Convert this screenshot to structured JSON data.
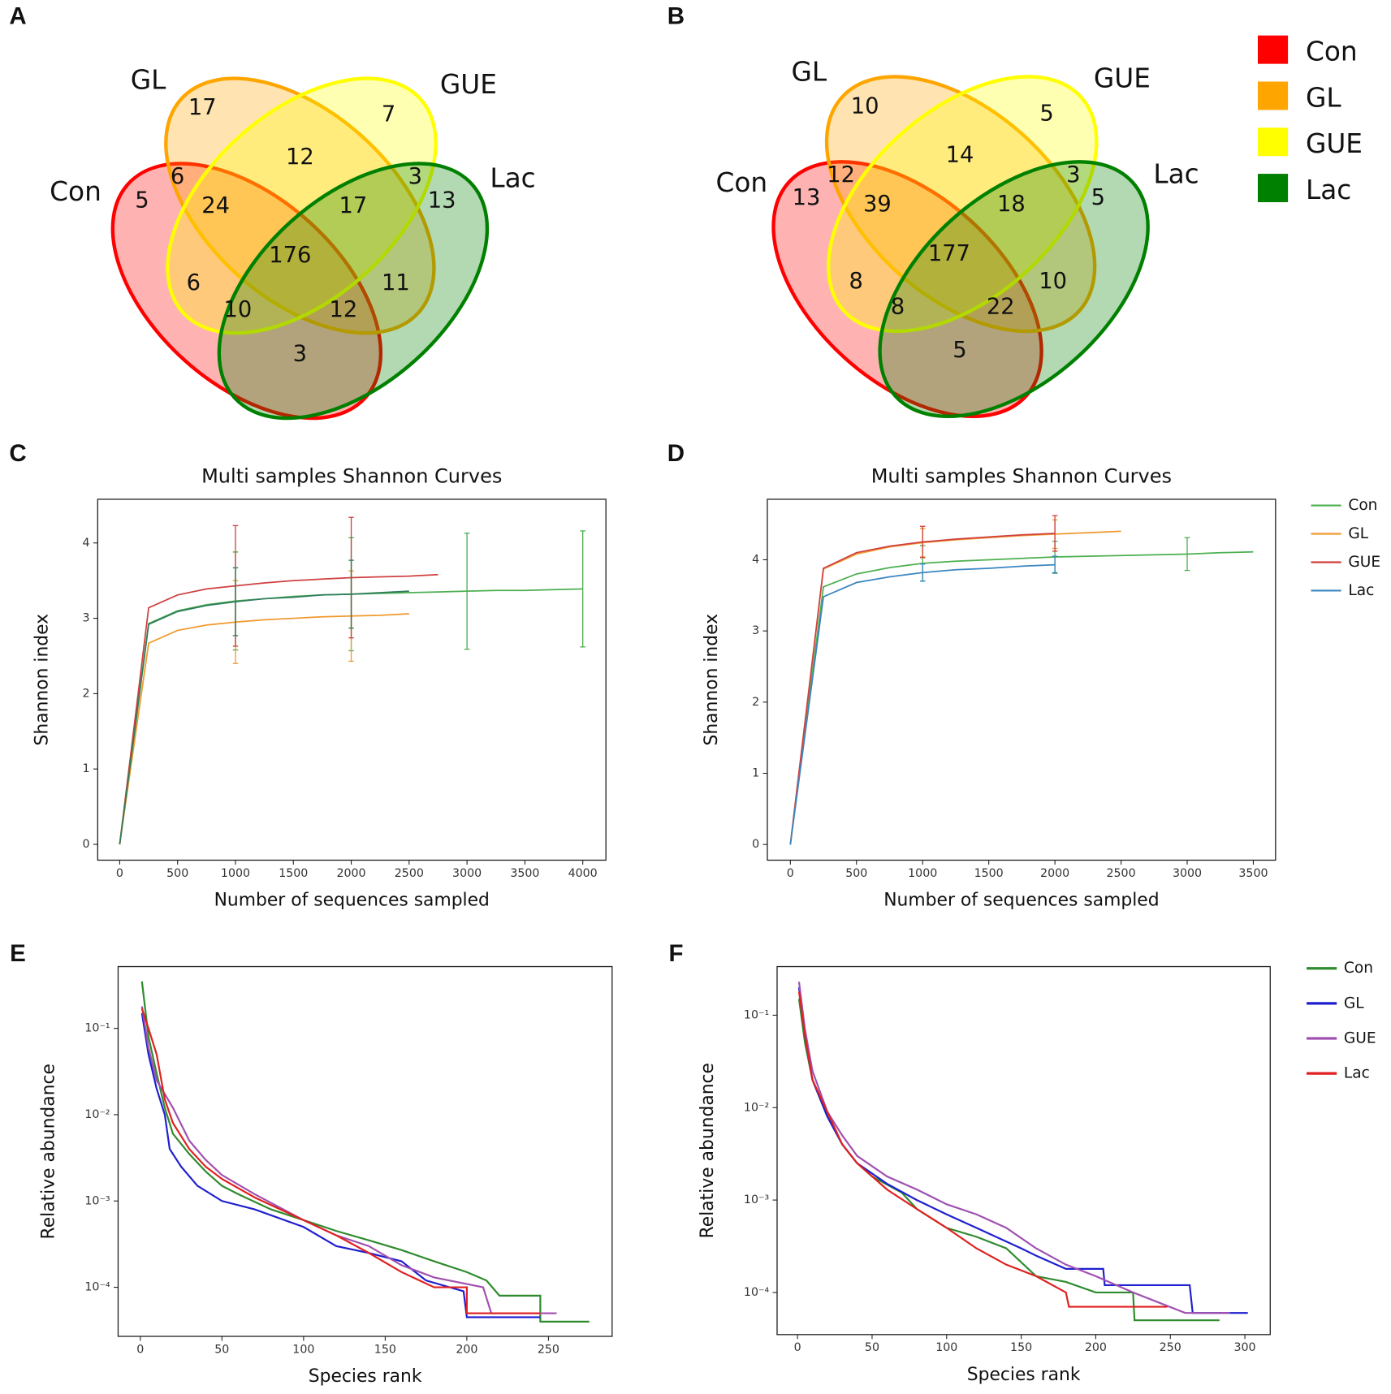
{
  "chart_data": [
    {
      "panel": "A",
      "type": "venn",
      "sets": [
        {
          "name": "Con",
          "color": "#ff0000"
        },
        {
          "name": "GL",
          "color": "#ffa500"
        },
        {
          "name": "GUE",
          "color": "#ffff00"
        },
        {
          "name": "Lac",
          "color": "#008000"
        }
      ],
      "values": [
        17,
        7,
        12,
        6,
        3,
        5,
        24,
        17,
        13,
        176,
        6,
        11,
        10,
        12,
        3
      ]
    },
    {
      "panel": "B",
      "type": "venn",
      "legend": "right",
      "sets": [
        {
          "name": "Con",
          "color": "#ff0000"
        },
        {
          "name": "GL",
          "color": "#ffa500"
        },
        {
          "name": "GUE",
          "color": "#ffff00"
        },
        {
          "name": "Lac",
          "color": "#008000"
        }
      ],
      "values": [
        10,
        5,
        14,
        12,
        3,
        13,
        39,
        18,
        5,
        177,
        8,
        10,
        8,
        22,
        5
      ]
    },
    {
      "panel": "C",
      "type": "line",
      "title": "Multi samples Shannon Curves",
      "xlabel": "Number of sequences sampled",
      "ylabel": "Shannon index",
      "xlim": [
        -190,
        4200
      ],
      "ylim": [
        -0.21,
        4.58
      ],
      "xticks": [
        0,
        500,
        1000,
        1500,
        2000,
        2500,
        3000,
        3500,
        4000
      ],
      "yticks": [
        0,
        1,
        2,
        3,
        4
      ],
      "series": [
        {
          "color": "#4caf50",
          "x": [
            0,
            250,
            500,
            750,
            1000,
            1250,
            1500,
            1750,
            2000,
            2250,
            2500,
            2750,
            3000,
            3250,
            3500,
            3750,
            4000
          ],
          "values": [
            0,
            2.93,
            3.1,
            3.18,
            3.23,
            3.26,
            3.29,
            3.31,
            3.32,
            3.33,
            3.34,
            3.35,
            3.36,
            3.37,
            3.37,
            3.38,
            3.39
          ],
          "errors": [
            null,
            null,
            null,
            null,
            0.65,
            null,
            null,
            null,
            0.75,
            null,
            null,
            null,
            0.77,
            null,
            null,
            null,
            0.77
          ]
        },
        {
          "color": "#f0992e",
          "x": [
            0,
            250,
            500,
            750,
            1000,
            1250,
            1500,
            1750,
            2000,
            2250,
            2500
          ],
          "values": [
            0,
            2.67,
            2.84,
            2.91,
            2.95,
            2.98,
            3.0,
            3.02,
            3.03,
            3.04,
            3.06
          ],
          "errors": [
            null,
            null,
            null,
            null,
            0.55,
            null,
            null,
            null,
            0.6,
            null,
            null
          ]
        },
        {
          "color": "#d04040",
          "x": [
            0,
            250,
            500,
            750,
            1000,
            1250,
            1500,
            1750,
            2000,
            2250,
            2500,
            2750
          ],
          "values": [
            0,
            3.14,
            3.31,
            3.39,
            3.43,
            3.47,
            3.5,
            3.52,
            3.54,
            3.55,
            3.56,
            3.58
          ],
          "errors": [
            null,
            null,
            null,
            null,
            0.8,
            null,
            null,
            null,
            0.8,
            null,
            null,
            null
          ]
        },
        {
          "color": "#2e7d5b",
          "x": [
            0,
            250,
            500,
            750,
            1000,
            1250,
            1500,
            1750,
            2000,
            2250,
            2500
          ],
          "values": [
            0,
            2.92,
            3.09,
            3.17,
            3.22,
            3.26,
            3.28,
            3.31,
            3.32,
            3.34,
            3.36
          ],
          "errors": [
            null,
            null,
            null,
            null,
            0.45,
            null,
            null,
            null,
            0.45,
            null,
            null
          ]
        }
      ]
    },
    {
      "panel": "D",
      "type": "line",
      "title": "Multi samples Shannon Curves",
      "xlabel": "Number of sequences sampled",
      "ylabel": "Shannon index",
      "legend": "right",
      "xlim": [
        -174,
        3668
      ],
      "ylim": [
        -0.22,
        4.85
      ],
      "xticks": [
        0,
        500,
        1000,
        1500,
        2000,
        2500,
        3000,
        3500
      ],
      "yticks": [
        0,
        1,
        2,
        3,
        4
      ],
      "series": [
        {
          "name": "Con",
          "color": "#4caf50",
          "x": [
            0,
            250,
            500,
            750,
            1000,
            1250,
            1500,
            1750,
            2000,
            2250,
            2500,
            2750,
            3000,
            3250,
            3500
          ],
          "values": [
            0,
            3.62,
            3.8,
            3.89,
            3.95,
            3.98,
            4.0,
            4.02,
            4.04,
            4.05,
            4.06,
            4.07,
            4.08,
            4.1,
            4.11
          ],
          "errors": [
            null,
            null,
            null,
            null,
            0.25,
            null,
            null,
            null,
            0.22,
            null,
            null,
            null,
            0.23,
            null,
            null
          ]
        },
        {
          "name": "GL",
          "color": "#f0992e",
          "x": [
            0,
            250,
            500,
            750,
            1000,
            1250,
            1500,
            1750,
            2000,
            2250,
            2500
          ],
          "values": [
            0,
            3.87,
            4.08,
            4.18,
            4.24,
            4.28,
            4.31,
            4.34,
            4.36,
            4.38,
            4.4
          ],
          "errors": [
            null,
            null,
            null,
            null,
            0.2,
            null,
            null,
            null,
            0.2,
            null,
            null
          ]
        },
        {
          "name": "GUE",
          "color": "#d04040",
          "x": [
            0,
            250,
            500,
            750,
            1000,
            1250,
            1500,
            1750,
            2000
          ],
          "values": [
            0,
            3.88,
            4.1,
            4.19,
            4.25,
            4.29,
            4.32,
            4.35,
            4.37
          ],
          "errors": [
            null,
            null,
            null,
            null,
            0.22,
            null,
            null,
            null,
            0.25
          ]
        },
        {
          "name": "Lac",
          "color": "#3a86c0",
          "x": [
            0,
            250,
            500,
            750,
            1000,
            1250,
            1500,
            1750,
            2000
          ],
          "values": [
            0,
            3.48,
            3.68,
            3.76,
            3.82,
            3.86,
            3.88,
            3.91,
            3.93
          ],
          "errors": [
            null,
            null,
            null,
            null,
            0.12,
            null,
            null,
            null,
            0.12
          ]
        }
      ]
    },
    {
      "panel": "E",
      "type": "line",
      "log_y": true,
      "xlabel": "Species rank",
      "ylabel": "Relative abundance",
      "xlim": [
        -13.6,
        289
      ],
      "ylim": [
        2.7e-05,
        0.52
      ],
      "xticks": [
        0,
        50,
        100,
        150,
        200,
        250
      ],
      "yticks": [
        {
          "value": 0.0001,
          "label": "10⁻⁴"
        },
        {
          "value": 0.001,
          "label": "10⁻³"
        },
        {
          "value": 0.01,
          "label": "10⁻²"
        },
        {
          "value": 0.1,
          "label": "10⁻¹"
        }
      ],
      "series": [
        {
          "color": "#2e8b2e",
          "x": [
            1,
            5,
            10,
            15,
            20,
            30,
            40,
            50,
            60,
            80,
            100,
            120,
            140,
            160,
            180,
            200,
            212,
            220,
            245,
            245,
            275
          ],
          "values": [
            0.35,
            0.08,
            0.03,
            0.012,
            0.006,
            0.0035,
            0.0022,
            0.0015,
            0.0012,
            0.0008,
            0.0006,
            0.00045,
            0.00035,
            0.00027,
            0.0002,
            0.00015,
            0.00012,
            8e-05,
            8e-05,
            4e-05,
            4e-05
          ]
        },
        {
          "color": "#1f1fd0",
          "x": [
            1,
            5,
            10,
            15,
            18,
            25,
            35,
            50,
            70,
            100,
            120,
            140,
            160,
            175,
            198,
            200,
            245
          ],
          "values": [
            0.15,
            0.05,
            0.02,
            0.01,
            0.004,
            0.0025,
            0.0015,
            0.001,
            0.0008,
            0.0005,
            0.0003,
            0.00025,
            0.0002,
            0.00012,
            9e-05,
            4.5e-05,
            4.5e-05
          ]
        },
        {
          "color": "#a050b0",
          "x": [
            1,
            5,
            10,
            20,
            30,
            40,
            50,
            70,
            100,
            120,
            140,
            160,
            180,
            210,
            215,
            255
          ],
          "values": [
            0.18,
            0.06,
            0.025,
            0.012,
            0.005,
            0.003,
            0.002,
            0.0012,
            0.0006,
            0.0004,
            0.0003,
            0.00018,
            0.00013,
            0.0001,
            5e-05,
            5e-05
          ]
        },
        {
          "color": "#e02020",
          "x": [
            1,
            5,
            10,
            15,
            20,
            30,
            40,
            50,
            70,
            100,
            120,
            140,
            160,
            180,
            200,
            200,
            245
          ],
          "values": [
            0.17,
            0.1,
            0.05,
            0.015,
            0.008,
            0.004,
            0.0025,
            0.0018,
            0.0011,
            0.0006,
            0.0004,
            0.00025,
            0.00015,
            0.0001,
            0.0001,
            5e-05,
            5e-05
          ]
        }
      ]
    },
    {
      "panel": "F",
      "type": "line",
      "log_y": true,
      "legend": "right",
      "xlabel": "Species rank",
      "ylabel": "Relative abundance",
      "xlim": [
        -13.7,
        317
      ],
      "ylim": [
        3.5e-05,
        0.336
      ],
      "xticks": [
        0,
        50,
        100,
        150,
        200,
        250,
        300
      ],
      "yticks": [
        {
          "value": 0.0001,
          "label": "10⁻⁴"
        },
        {
          "value": 0.001,
          "label": "10⁻³"
        },
        {
          "value": 0.01,
          "label": "10⁻²"
        },
        {
          "value": 0.1,
          "label": "10⁻¹"
        }
      ],
      "series": [
        {
          "name": "Con",
          "color": "#2e8b2e",
          "x": [
            1,
            5,
            10,
            20,
            30,
            40,
            50,
            70,
            80,
            100,
            120,
            140,
            160,
            180,
            200,
            225,
            226,
            283
          ],
          "values": [
            0.15,
            0.05,
            0.02,
            0.008,
            0.004,
            0.0025,
            0.0018,
            0.0012,
            0.0008,
            0.0005,
            0.0004,
            0.0003,
            0.00015,
            0.00013,
            0.0001,
            0.0001,
            5e-05,
            5e-05
          ]
        },
        {
          "name": "GL",
          "color": "#1f1fd0",
          "x": [
            1,
            5,
            10,
            20,
            30,
            40,
            60,
            80,
            100,
            120,
            150,
            160,
            180,
            205,
            206,
            263,
            265,
            302
          ],
          "values": [
            0.2,
            0.06,
            0.02,
            0.008,
            0.004,
            0.0025,
            0.0015,
            0.001,
            0.0007,
            0.0005,
            0.0003,
            0.00025,
            0.00018,
            0.00018,
            0.00012,
            0.00012,
            6e-05,
            6e-05
          ]
        },
        {
          "name": "GUE",
          "color": "#a050b0",
          "x": [
            1,
            5,
            10,
            20,
            30,
            40,
            60,
            80,
            100,
            120,
            140,
            160,
            180,
            200,
            225,
            260,
            290
          ],
          "values": [
            0.23,
            0.07,
            0.025,
            0.009,
            0.005,
            0.003,
            0.0018,
            0.0013,
            0.0009,
            0.0007,
            0.0005,
            0.0003,
            0.0002,
            0.00015,
            0.0001,
            6e-05,
            6e-05
          ]
        },
        {
          "name": "Lac",
          "color": "#e02020",
          "x": [
            1,
            5,
            10,
            20,
            30,
            40,
            60,
            80,
            100,
            120,
            140,
            160,
            180,
            182,
            248
          ],
          "values": [
            0.18,
            0.06,
            0.02,
            0.009,
            0.004,
            0.0025,
            0.0013,
            0.0008,
            0.0005,
            0.0003,
            0.0002,
            0.00015,
            0.0001,
            7e-05,
            7e-05
          ]
        }
      ]
    }
  ]
}
